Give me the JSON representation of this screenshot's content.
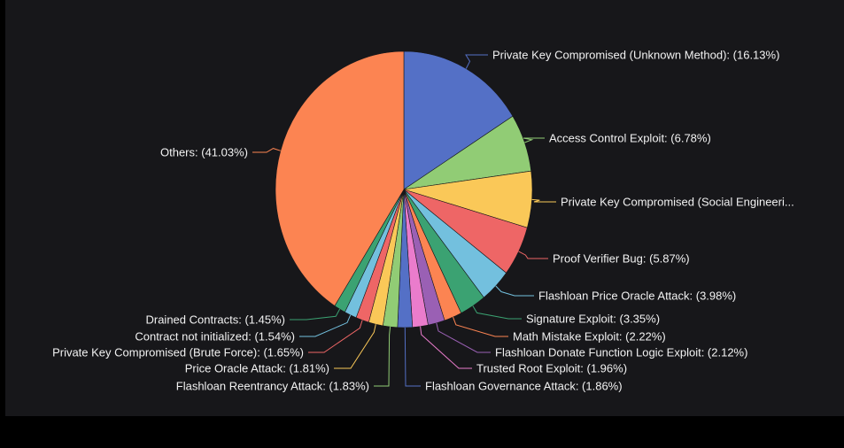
{
  "chart_data": {
    "type": "pie",
    "start_angle_deg": 0,
    "direction": "clockwise",
    "slices": [
      {
        "label": "Private Key Compromised (Unknown Method): (16.13%)",
        "value": 16.13,
        "color": "#5470c6"
      },
      {
        "label": "Access Control Exploit: (6.78%)",
        "value": 6.78,
        "color": "#91cc75"
      },
      {
        "label": "Private Key Compromised (Social Engineeri...",
        "value": 6.61,
        "color": "#fac858"
      },
      {
        "label": "Proof Verifier Bug: (5.87%)",
        "value": 5.87,
        "color": "#ee6666"
      },
      {
        "label": "Flashloan Price Oracle Attack: (3.98%)",
        "value": 3.98,
        "color": "#73c0de"
      },
      {
        "label": "Signature Exploit: (3.35%)",
        "value": 3.35,
        "color": "#3ba272"
      },
      {
        "label": "Math Mistake Exploit: (2.22%)",
        "value": 2.22,
        "color": "#fc8452"
      },
      {
        "label": "Flashloan Donate Function Logic Exploit: (2.12%)",
        "value": 2.12,
        "color": "#9a60b4"
      },
      {
        "label": "Trusted Root Exploit: (1.96%)",
        "value": 1.96,
        "color": "#ea7ccc"
      },
      {
        "label": "Flashloan Governance Attack: (1.86%)",
        "value": 1.86,
        "color": "#5470c6"
      },
      {
        "label": "Flashloan Reentrancy Attack: (1.83%)",
        "value": 1.83,
        "color": "#91cc75"
      },
      {
        "label": "Price Oracle Attack: (1.81%)",
        "value": 1.81,
        "color": "#fac858"
      },
      {
        "label": "Private Key Compromised (Brute Force): (1.65%)",
        "value": 1.65,
        "color": "#ee6666"
      },
      {
        "label": "Contract not initialized: (1.54%)",
        "value": 1.54,
        "color": "#73c0de"
      },
      {
        "label": "Drained Contracts: (1.45%)",
        "value": 1.45,
        "color": "#3ba272"
      },
      {
        "label": "Others: (41.03%)",
        "value": 41.03,
        "color": "#fc8452"
      }
    ]
  }
}
